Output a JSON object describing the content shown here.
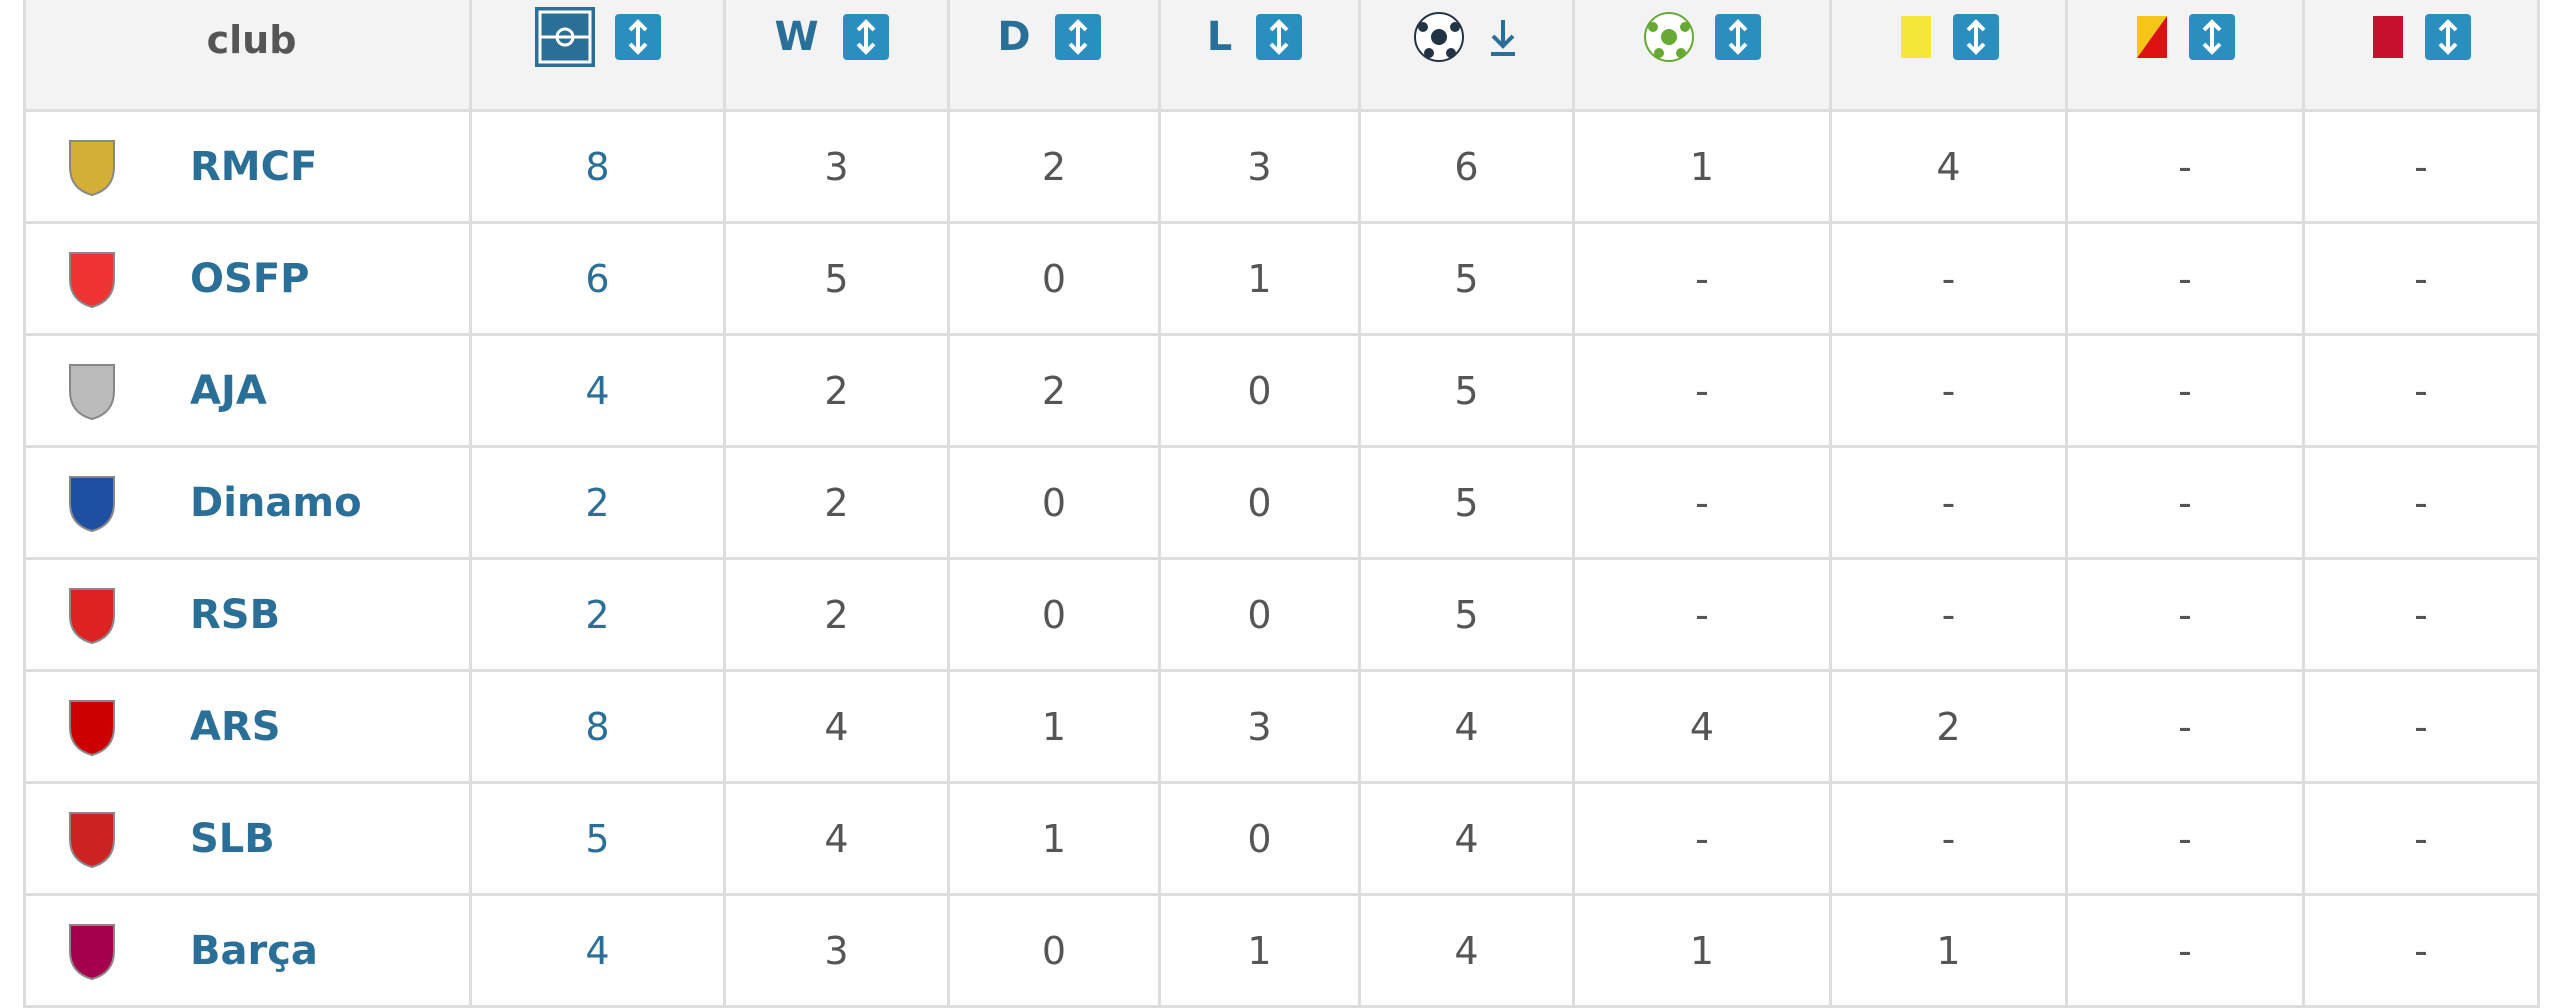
{
  "header": {
    "club": "club",
    "wins": "W",
    "draws": "D",
    "losses": "L"
  },
  "rows": [
    {
      "club": "RMCF",
      "values": [
        8,
        3,
        2,
        3,
        6,
        1,
        4,
        "-",
        "-"
      ]
    },
    {
      "club": "OSFP",
      "values": [
        6,
        5,
        0,
        1,
        5,
        "-",
        "-",
        "-",
        "-"
      ]
    },
    {
      "club": "AJA",
      "values": [
        4,
        2,
        2,
        0,
        5,
        "-",
        "-",
        "-",
        "-"
      ]
    },
    {
      "club": "Dinamo",
      "values": [
        2,
        2,
        0,
        0,
        5,
        "-",
        "-",
        "-",
        "-"
      ]
    },
    {
      "club": "RSB",
      "values": [
        2,
        2,
        0,
        0,
        5,
        "-",
        "-",
        "-",
        "-"
      ]
    },
    {
      "club": "ARS",
      "values": [
        8,
        4,
        1,
        3,
        4,
        4,
        2,
        "-",
        "-"
      ]
    },
    {
      "club": "SLB",
      "values": [
        5,
        4,
        1,
        0,
        4,
        "-",
        "-",
        "-",
        "-"
      ]
    },
    {
      "club": "Barça",
      "values": [
        4,
        3,
        0,
        1,
        4,
        1,
        1,
        "-",
        "-"
      ]
    }
  ]
}
